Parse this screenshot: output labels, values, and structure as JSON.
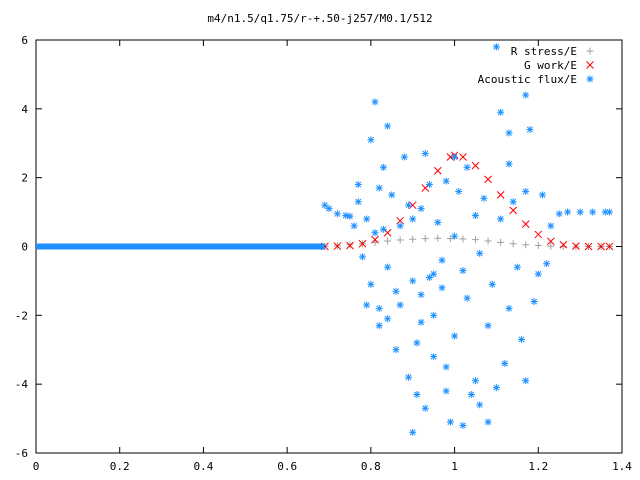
{
  "chart_data": {
    "type": "scatter",
    "title": "m4/n1.5/q1.75/r-+.50-j257/M0.1/512",
    "xlabel": "",
    "ylabel": "",
    "xlim": [
      0,
      1.4
    ],
    "ylim": [
      -6,
      6
    ],
    "xticks": [
      0,
      0.2,
      0.4,
      0.6,
      0.8,
      1,
      1.2,
      1.4
    ],
    "xtick_labels": [
      "0",
      "0.2",
      "0.4",
      "0.6",
      "0.8",
      "1",
      "1.2",
      "1.4"
    ],
    "yticks": [
      -6,
      -4,
      -2,
      0,
      2,
      4,
      6
    ],
    "ytick_labels": [
      "-6",
      "-4",
      "-2",
      "0",
      "2",
      "4",
      "6"
    ],
    "grid": false,
    "legend_position": "top-right",
    "series": [
      {
        "name": "R stress/E",
        "marker": "+",
        "color": "#a0a0a0",
        "x": [
          0.69,
          0.72,
          0.75,
          0.78,
          0.81,
          0.84,
          0.87,
          0.9,
          0.93,
          0.96,
          0.99,
          1.02,
          1.05,
          1.08,
          1.11,
          1.14,
          1.17,
          1.2,
          1.23,
          1.26,
          1.29,
          1.32,
          1.35,
          1.37
        ],
        "y": [
          0.0,
          0.02,
          0.05,
          0.08,
          0.12,
          0.16,
          0.19,
          0.21,
          0.23,
          0.24,
          0.23,
          0.22,
          0.2,
          0.16,
          0.12,
          0.08,
          0.05,
          0.03,
          0.01,
          0.0,
          -0.01,
          0.0,
          0.0,
          0.0
        ]
      },
      {
        "name": "G work/E",
        "marker": "x",
        "color": "#ff0000",
        "x": [
          0.69,
          0.72,
          0.75,
          0.78,
          0.81,
          0.84,
          0.87,
          0.9,
          0.93,
          0.96,
          0.99,
          1.0,
          1.02,
          1.05,
          1.08,
          1.11,
          1.14,
          1.17,
          1.2,
          1.23,
          1.26,
          1.29,
          1.32,
          1.35,
          1.37
        ],
        "y": [
          0.0,
          0.01,
          0.03,
          0.08,
          0.2,
          0.4,
          0.75,
          1.2,
          1.7,
          2.2,
          2.6,
          2.65,
          2.6,
          2.35,
          1.95,
          1.5,
          1.05,
          0.65,
          0.35,
          0.15,
          0.05,
          0.01,
          0.0,
          0.0,
          0.0
        ]
      },
      {
        "name": "Acoustic flux/E",
        "marker": "*",
        "color": "#1e90ff",
        "x": [
          0.69,
          0.7,
          0.72,
          0.74,
          0.75,
          0.76,
          0.77,
          0.78,
          0.79,
          0.8,
          0.8,
          0.81,
          0.81,
          0.82,
          0.82,
          0.83,
          0.83,
          0.84,
          0.84,
          0.85,
          0.86,
          0.87,
          0.87,
          0.88,
          0.89,
          0.89,
          0.9,
          0.9,
          0.91,
          0.91,
          0.92,
          0.92,
          0.93,
          0.93,
          0.94,
          0.94,
          0.95,
          0.95,
          0.96,
          0.97,
          0.97,
          0.98,
          0.98,
          0.99,
          1.0,
          1.0,
          1.01,
          1.02,
          1.03,
          1.03,
          1.04,
          1.05,
          1.05,
          1.06,
          1.07,
          1.08,
          1.09,
          1.1,
          1.1,
          1.11,
          1.12,
          1.13,
          1.13,
          1.14,
          1.15,
          1.16,
          1.17,
          1.17,
          1.18,
          1.19,
          1.2,
          1.21,
          1.22,
          1.23,
          1.25,
          1.27,
          1.3,
          1.33,
          1.36,
          1.37,
          1.17,
          1.13,
          1.06,
          1.02,
          0.98,
          0.95,
          0.92,
          0.9,
          0.86,
          0.84,
          0.82,
          0.79,
          0.77,
          1.0,
          1.08,
          1.11
        ],
        "y": [
          1.2,
          1.1,
          0.95,
          0.9,
          0.88,
          0.6,
          1.3,
          -0.3,
          0.8,
          3.1,
          -1.1,
          4.2,
          0.4,
          1.7,
          -2.3,
          2.3,
          0.5,
          -0.6,
          3.5,
          1.5,
          -3.0,
          -1.7,
          0.6,
          2.6,
          -3.8,
          1.2,
          -5.4,
          0.8,
          -2.8,
          -4.3,
          1.1,
          -1.4,
          2.7,
          -4.7,
          -0.9,
          1.8,
          -2.0,
          -3.2,
          0.7,
          -0.4,
          -1.2,
          1.9,
          -4.2,
          -5.1,
          0.3,
          -2.6,
          1.6,
          -0.7,
          -1.5,
          2.3,
          -4.3,
          -3.9,
          0.9,
          -0.2,
          1.4,
          -2.3,
          -1.1,
          5.8,
          -4.1,
          0.8,
          -3.4,
          -1.8,
          2.4,
          1.3,
          -0.6,
          -2.7,
          1.6,
          -3.9,
          3.4,
          -1.6,
          -0.8,
          1.5,
          -0.5,
          0.6,
          0.95,
          1.0,
          1.0,
          1.0,
          1.0,
          1.0,
          4.4,
          3.3,
          -4.6,
          -5.2,
          -3.5,
          -0.8,
          -2.2,
          -1.0,
          -1.3,
          -2.1,
          -1.8,
          -1.7,
          1.8,
          2.6,
          -5.1,
          3.9
        ]
      },
      {
        "name": "Acoustic flux/E (baseline)",
        "marker": "*",
        "color": "#1e90ff",
        "x_range": [
          0.0,
          0.69
        ],
        "y": 0
      }
    ]
  }
}
